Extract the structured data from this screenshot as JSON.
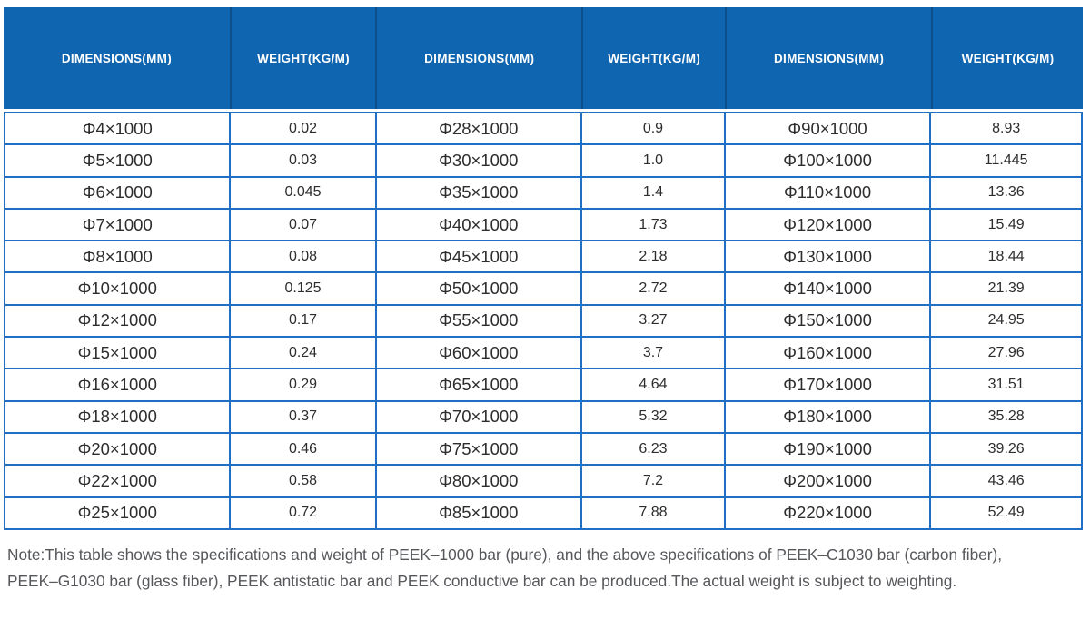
{
  "table": {
    "headers": [
      "DIMENSIONS(MM)",
      "WEIGHT(KG/M)",
      "DIMENSIONS(MM)",
      "WEIGHT(KG/M)",
      "DIMENSIONS(MM)",
      "WEIGHT(KG/M)"
    ],
    "rows": [
      [
        "Φ4×1000",
        "0.02",
        "Φ28×1000",
        "0.9",
        "Φ90×1000",
        "8.93"
      ],
      [
        "Φ5×1000",
        "0.03",
        "Φ30×1000",
        "1.0",
        "Φ100×1000",
        "11.445"
      ],
      [
        "Φ6×1000",
        "0.045",
        "Φ35×1000",
        "1.4",
        "Φ110×1000",
        "13.36"
      ],
      [
        "Φ7×1000",
        "0.07",
        "Φ40×1000",
        "1.73",
        "Φ120×1000",
        "15.49"
      ],
      [
        "Φ8×1000",
        "0.08",
        "Φ45×1000",
        "2.18",
        "Φ130×1000",
        "18.44"
      ],
      [
        "Φ10×1000",
        "0.125",
        "Φ50×1000",
        "2.72",
        "Φ140×1000",
        "21.39"
      ],
      [
        "Φ12×1000",
        "0.17",
        "Φ55×1000",
        "3.27",
        "Φ150×1000",
        "24.95"
      ],
      [
        "Φ15×1000",
        "0.24",
        "Φ60×1000",
        "3.7",
        "Φ160×1000",
        "27.96"
      ],
      [
        "Φ16×1000",
        "0.29",
        "Φ65×1000",
        "4.64",
        "Φ170×1000",
        "31.51"
      ],
      [
        "Φ18×1000",
        "0.37",
        "Φ70×1000",
        "5.32",
        "Φ180×1000",
        "35.28"
      ],
      [
        "Φ20×1000",
        "0.46",
        "Φ75×1000",
        "6.23",
        "Φ190×1000",
        "39.26"
      ],
      [
        "Φ22×1000",
        "0.58",
        "Φ80×1000",
        "7.2",
        "Φ200×1000",
        "43.46"
      ],
      [
        "Φ25×1000",
        "0.72",
        "Φ85×1000",
        "7.88",
        "Φ220×1000",
        "52.49"
      ]
    ]
  },
  "note": {
    "line1": "Note:This table shows the specifications and weight of PEEK–1000 bar (pure), and the above specifications of PEEK–C1030 bar (carbon fiber),",
    "line2": "PEEK–G1030 bar (glass fiber), PEEK antistatic bar and PEEK conductive bar can be produced.The actual weight is subject to weighting."
  },
  "colors": {
    "header_bg": "#1065b0",
    "header_separator": "#0d4f8c",
    "grid_border": "#1f70c4",
    "body_text": "#2d2d2d",
    "note_text": "#56575b"
  }
}
